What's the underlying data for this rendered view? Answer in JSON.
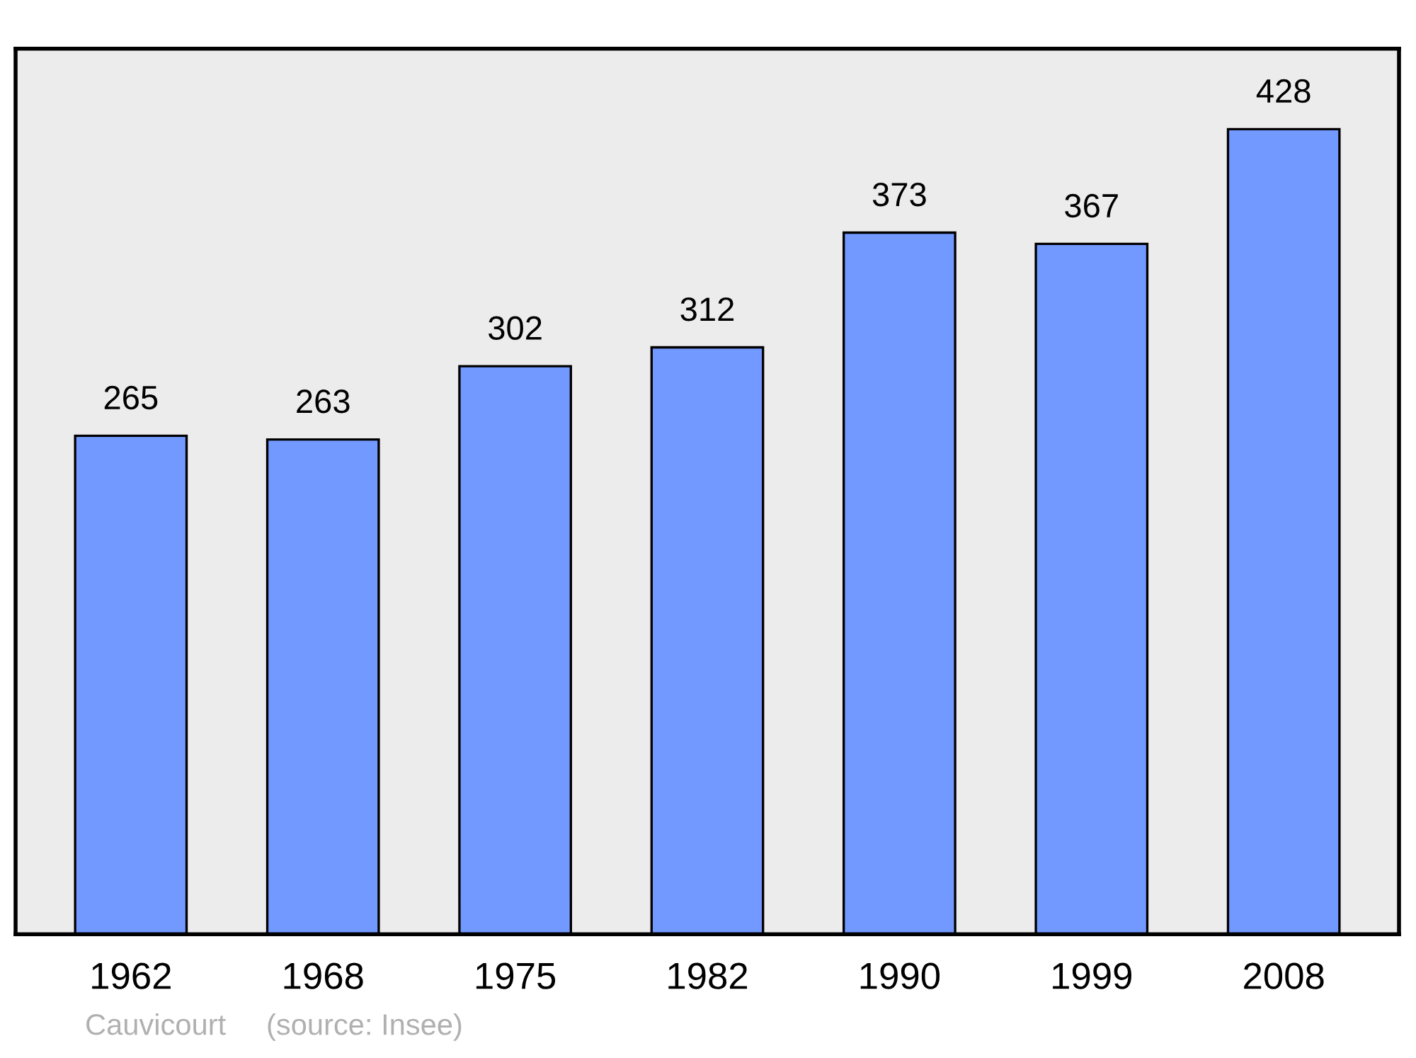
{
  "chart_data": {
    "type": "bar",
    "categories": [
      "1962",
      "1968",
      "1975",
      "1982",
      "1990",
      "1999",
      "2008"
    ],
    "values": [
      265,
      263,
      302,
      312,
      373,
      367,
      428
    ],
    "color": "#7299ff",
    "data_labels": true,
    "grid": false,
    "legend": false,
    "annotations": [
      "Cauvicourt",
      "(source: Insee)"
    ]
  }
}
